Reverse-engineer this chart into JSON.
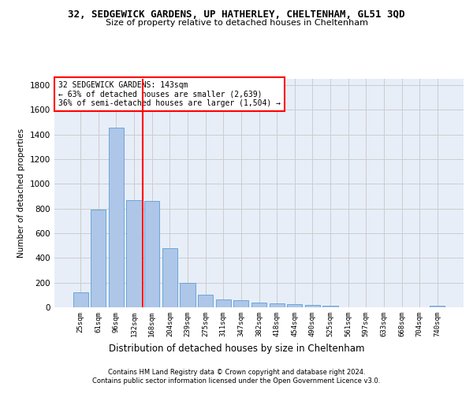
{
  "title": "32, SEDGEWICK GARDENS, UP HATHERLEY, CHELTENHAM, GL51 3QD",
  "subtitle": "Size of property relative to detached houses in Cheltenham",
  "xlabel": "Distribution of detached houses by size in Cheltenham",
  "ylabel": "Number of detached properties",
  "footer_line1": "Contains HM Land Registry data © Crown copyright and database right 2024.",
  "footer_line2": "Contains public sector information licensed under the Open Government Licence v3.0.",
  "categories": [
    "25sqm",
    "61sqm",
    "96sqm",
    "132sqm",
    "168sqm",
    "204sqm",
    "239sqm",
    "275sqm",
    "311sqm",
    "347sqm",
    "382sqm",
    "418sqm",
    "454sqm",
    "490sqm",
    "525sqm",
    "561sqm",
    "597sqm",
    "633sqm",
    "668sqm",
    "704sqm",
    "740sqm"
  ],
  "values": [
    120,
    790,
    1455,
    870,
    860,
    480,
    200,
    100,
    65,
    60,
    40,
    35,
    25,
    20,
    12,
    0,
    0,
    0,
    0,
    0,
    15
  ],
  "bar_color": "#aec6e8",
  "bar_edge_color": "#5a9fd4",
  "grid_color": "#cccccc",
  "bg_color": "#e8eef8",
  "vline_x": 3.5,
  "vline_color": "red",
  "annotation_title": "32 SEDGEWICK GARDENS: 143sqm",
  "annotation_line1": "← 63% of detached houses are smaller (2,639)",
  "annotation_line2": "36% of semi-detached houses are larger (1,504) →",
  "annotation_box_color": "red",
  "ylim": [
    0,
    1850
  ],
  "yticks": [
    0,
    200,
    400,
    600,
    800,
    1000,
    1200,
    1400,
    1600,
    1800
  ]
}
